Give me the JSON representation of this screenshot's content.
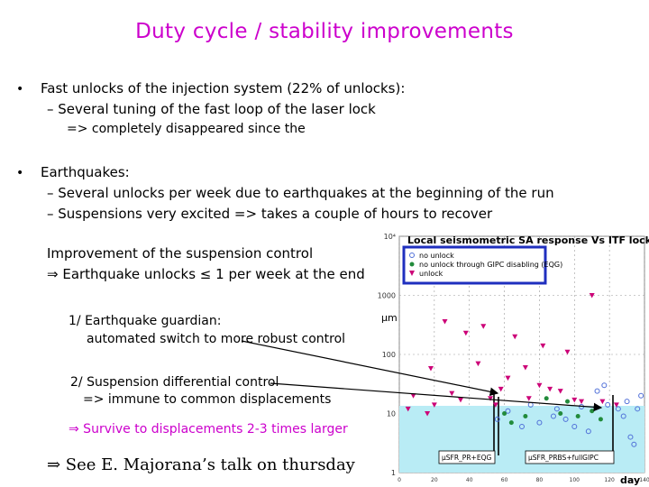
{
  "slide": {
    "title": "Duty cycle / stability improvements",
    "bullet_1": {
      "marker": "•",
      "text": "Fast unlocks of the injection system (22% of unlocks):",
      "sub_1": "– Several tuning of the fast loop of the laser lock",
      "sub_1_cont": "=> completely disappeared since the",
      "sub_marker": "–"
    },
    "bullet_2": {
      "marker": "•",
      "text": "Earthquakes:",
      "sub_1": "– Several unlocks per week due to earthquakes at the beginning of the run",
      "sub_2": "– Suspensions very excited => takes a couple of hours to recover"
    },
    "improvement": {
      "line_1": "Improvement of the suspension control",
      "line_2": "⇒ Earthquake unlocks ≤ 1 per week at the end"
    },
    "guardian": {
      "line_1": "1/ Earthquake guardian:",
      "line_2": "automated switch to more robust control"
    },
    "differential": {
      "line_1": "2/ Suspension differential control",
      "line_2": "=> immune to common displacements"
    },
    "survive": "⇒ Survive to displacements 2-3 times larger",
    "see_talk": "⇒ See E. Majorana’s talk on thursday"
  },
  "chart_data": {
    "type": "scatter",
    "title": "Local seismometric SA response Vs ITF lock",
    "xlabel": "day",
    "ylabel": "μm",
    "log_y": true,
    "ylim": [
      1,
      10000
    ],
    "xlim": [
      0,
      140
    ],
    "x_ticks": [
      "0",
      "20",
      "40",
      "60",
      "80",
      "100",
      "120",
      "140"
    ],
    "y_ticks": [
      "1",
      "10",
      "100",
      "1000",
      "10⁴"
    ],
    "legend_position": "top-left",
    "legend": [
      {
        "label": "no unlock",
        "marker": "circle",
        "color": "#4f6fd8"
      },
      {
        "label": "no unlock through GIPC disabling (EQG)",
        "marker": "dot",
        "color": "#228b3b"
      },
      {
        "label": "unlock",
        "marker": "triangle-down",
        "color": "#cc0077"
      }
    ],
    "region_labels": [
      "μSFR_PR+EQG",
      "μSFR_PRBS+fullGIPC"
    ],
    "series": [
      {
        "name": "no unlock",
        "points": [
          [
            56,
            8
          ],
          [
            62,
            11
          ],
          [
            70,
            6
          ],
          [
            75,
            14
          ],
          [
            80,
            7
          ],
          [
            88,
            9
          ],
          [
            90,
            12
          ],
          [
            95,
            8
          ],
          [
            100,
            6
          ],
          [
            104,
            13
          ],
          [
            108,
            5
          ],
          [
            113,
            24
          ],
          [
            117,
            30
          ],
          [
            119,
            14
          ],
          [
            125,
            12
          ],
          [
            128,
            9
          ],
          [
            130,
            16
          ],
          [
            132,
            4
          ],
          [
            134,
            3
          ],
          [
            136,
            12
          ],
          [
            138,
            20
          ]
        ]
      },
      {
        "name": "no unlock through GIPC disabling (EQG)",
        "points": [
          [
            60,
            10
          ],
          [
            64,
            7
          ],
          [
            72,
            9
          ],
          [
            84,
            18
          ],
          [
            92,
            10
          ],
          [
            96,
            16
          ],
          [
            102,
            9
          ],
          [
            110,
            11
          ],
          [
            115,
            8
          ]
        ]
      },
      {
        "name": "unlock",
        "points": [
          [
            5,
            12
          ],
          [
            8,
            20
          ],
          [
            16,
            10
          ],
          [
            18,
            58
          ],
          [
            20,
            14
          ],
          [
            26,
            360
          ],
          [
            30,
            22
          ],
          [
            35,
            17
          ],
          [
            38,
            230
          ],
          [
            45,
            70
          ],
          [
            48,
            300
          ],
          [
            52,
            18
          ],
          [
            55,
            14
          ],
          [
            58,
            26
          ],
          [
            62,
            40
          ],
          [
            66,
            200
          ],
          [
            72,
            60
          ],
          [
            74,
            18
          ],
          [
            80,
            30
          ],
          [
            82,
            140
          ],
          [
            86,
            26
          ],
          [
            92,
            24
          ],
          [
            96,
            110
          ],
          [
            100,
            17
          ],
          [
            104,
            16
          ],
          [
            110,
            1000
          ],
          [
            116,
            16
          ],
          [
            124,
            14
          ]
        ]
      }
    ]
  }
}
